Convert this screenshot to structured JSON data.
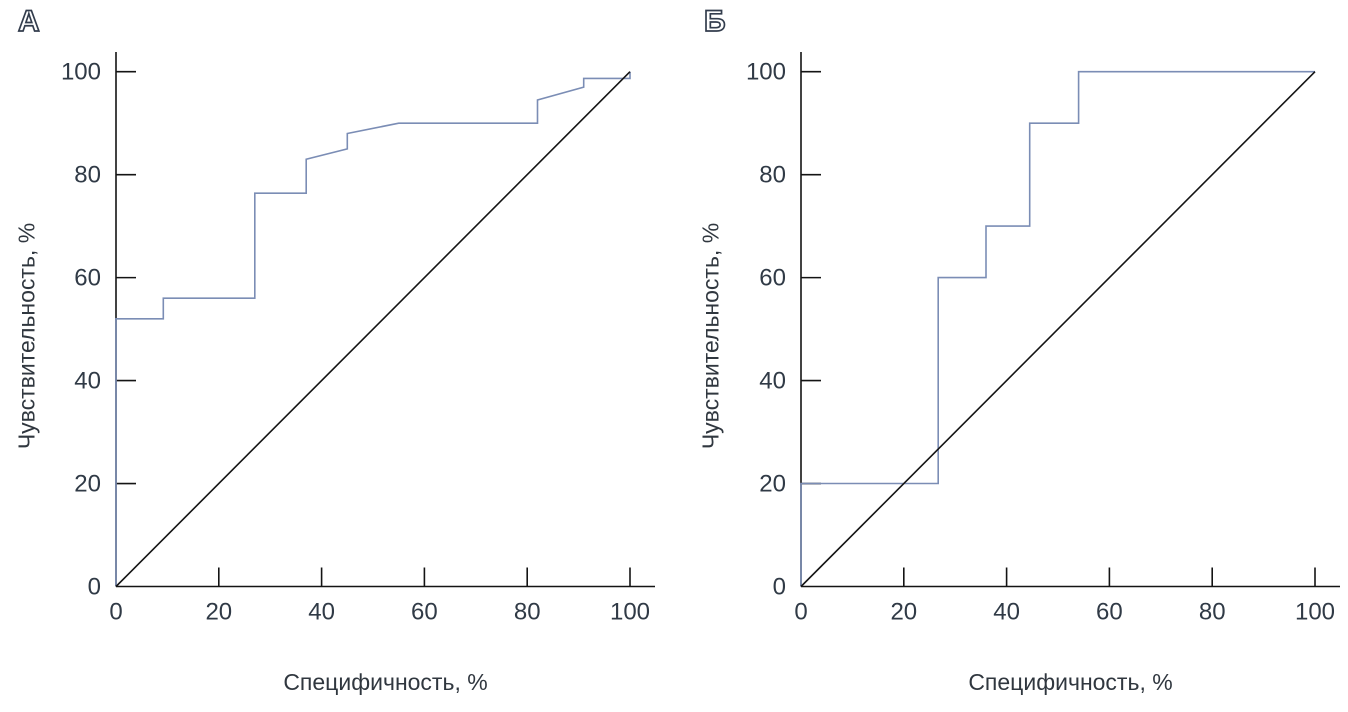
{
  "figure_title": "",
  "colors": {
    "curve": "#7b8db5",
    "axis": "#141414",
    "diagonal": "#141414",
    "tick_text": "#303a46",
    "panel_label_fill": "#ffffff",
    "panel_label_outline": "#333d4d"
  },
  "chart_data": [
    {
      "type": "line",
      "panel_label": "А",
      "title": "",
      "xlabel": "Специфичность, %",
      "ylabel": "Чувствительность, %",
      "xlim": [
        0,
        100
      ],
      "ylim": [
        0,
        100
      ],
      "x_ticks": [
        0,
        20,
        40,
        60,
        80,
        100
      ],
      "y_ticks": [
        0,
        20,
        40,
        60,
        80,
        100
      ],
      "grid": false,
      "legend": "none",
      "series": [
        {
          "name": "ROC curve",
          "style": "step",
          "color": "#7b8db5",
          "points": [
            [
              0,
              0
            ],
            [
              0,
              52
            ],
            [
              9.2,
              52
            ],
            [
              9.2,
              56
            ],
            [
              27,
              56
            ],
            [
              27,
              76.4
            ],
            [
              37,
              76.4
            ],
            [
              37,
              83
            ],
            [
              45,
              85
            ],
            [
              45,
              88
            ],
            [
              55,
              90
            ],
            [
              82,
              90
            ],
            [
              82,
              94.5
            ],
            [
              91,
              97
            ],
            [
              91,
              98.7
            ],
            [
              100,
              98.7
            ],
            [
              100,
              100
            ]
          ]
        },
        {
          "name": "chance diagonal",
          "style": "line",
          "color": "#141414",
          "points": [
            [
              0,
              0
            ],
            [
              100,
              100
            ]
          ]
        }
      ]
    },
    {
      "type": "line",
      "panel_label": "Б",
      "title": "",
      "xlabel": "Специфичность, %",
      "ylabel": "Чувствительность, %",
      "xlim": [
        0,
        100
      ],
      "ylim": [
        0,
        100
      ],
      "x_ticks": [
        0,
        20,
        40,
        60,
        80,
        100
      ],
      "y_ticks": [
        0,
        20,
        40,
        60,
        80,
        100
      ],
      "grid": false,
      "legend": "none",
      "series": [
        {
          "name": "ROC curve",
          "style": "step",
          "color": "#7b8db5",
          "points": [
            [
              0,
              0
            ],
            [
              0,
              20
            ],
            [
              26.7,
              20
            ],
            [
              26.7,
              60
            ],
            [
              36,
              60
            ],
            [
              36,
              70
            ],
            [
              44.5,
              70
            ],
            [
              44.5,
              90
            ],
            [
              54,
              90
            ],
            [
              54,
              100
            ],
            [
              100,
              100
            ]
          ]
        },
        {
          "name": "chance diagonal",
          "style": "line",
          "color": "#141414",
          "points": [
            [
              0,
              0
            ],
            [
              100,
              100
            ]
          ]
        }
      ]
    }
  ]
}
